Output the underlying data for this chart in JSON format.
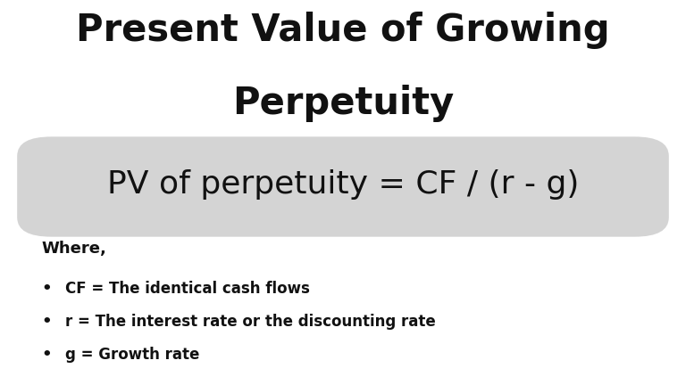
{
  "title_line1": "Present Value of Growing",
  "title_line2": "Perpetuity",
  "title_fontsize": 30,
  "title_color": "#111111",
  "formula_text": "PV of perpetuity = CF / (r - g)",
  "formula_fontsize": 26,
  "formula_color": "#111111",
  "box_facecolor": "#d4d4d4",
  "where_label": "Where,",
  "where_fontsize": 13,
  "where_color": "#111111",
  "bullet_items": [
    "CF = The identical cash flows",
    "r = The interest rate or the discounting rate",
    "g = Growth rate"
  ],
  "bullet_fontsize": 12,
  "bullet_color": "#111111",
  "background_color": "#ffffff",
  "fig_width": 7.68,
  "fig_height": 4.32,
  "dpi": 100
}
